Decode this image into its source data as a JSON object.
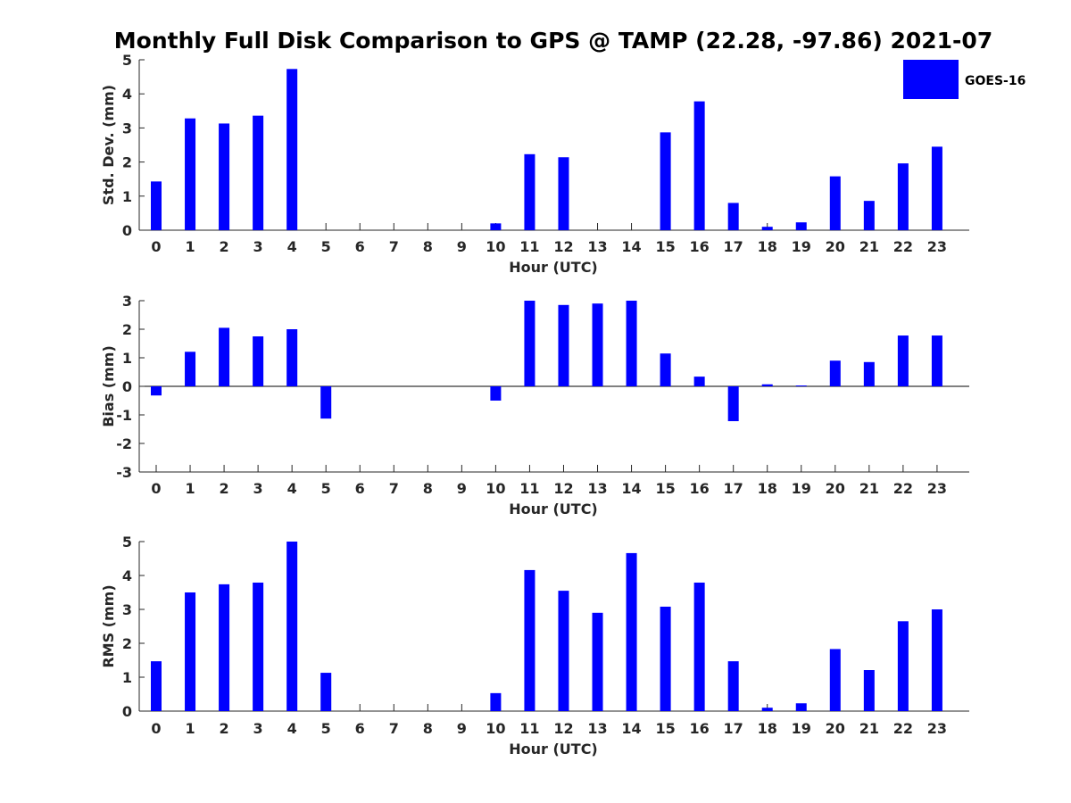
{
  "title": "Monthly Full Disk Comparison to GPS @ TAMP (22.28, -97.86) 2021-07",
  "colors": {
    "bar": "#0000ff",
    "axis": "#262626"
  },
  "legend": {
    "label": "GOES-16",
    "placement": "top-right"
  },
  "chart_data": [
    {
      "type": "bar",
      "name": "std",
      "xlabel": "Hour (UTC)",
      "ylabel": "Std. Dev. (mm)",
      "ylim": [
        0,
        5
      ],
      "yticks": [
        0,
        1,
        2,
        3,
        4,
        5
      ],
      "categories": [
        "0",
        "1",
        "2",
        "3",
        "4",
        "5",
        "6",
        "7",
        "8",
        "9",
        "10",
        "11",
        "12",
        "13",
        "14",
        "15",
        "16",
        "17",
        "18",
        "19",
        "20",
        "21",
        "22",
        "23"
      ],
      "values": [
        1.43,
        3.28,
        3.13,
        3.36,
        4.73,
        0,
        0,
        0,
        0,
        0,
        0.2,
        2.23,
        2.14,
        0,
        0,
        2.87,
        3.78,
        0.8,
        0.1,
        0.23,
        1.58,
        0.86,
        1.96,
        2.45
      ]
    },
    {
      "type": "bar",
      "name": "bias",
      "xlabel": "Hour (UTC)",
      "ylabel": "Bias (mm)",
      "ylim": [
        -3,
        3
      ],
      "yticks": [
        -3,
        -2,
        -1,
        0,
        1,
        2,
        3
      ],
      "categories": [
        "0",
        "1",
        "2",
        "3",
        "4",
        "5",
        "6",
        "7",
        "8",
        "9",
        "10",
        "11",
        "12",
        "13",
        "14",
        "15",
        "16",
        "17",
        "18",
        "19",
        "20",
        "21",
        "22",
        "23"
      ],
      "values": [
        -0.32,
        1.21,
        2.05,
        1.75,
        2.0,
        -1.13,
        0,
        0,
        0,
        0,
        -0.5,
        3.0,
        2.85,
        2.9,
        3.0,
        1.15,
        0.34,
        -1.22,
        0.07,
        0.03,
        0.9,
        0.85,
        1.78,
        1.78
      ]
    },
    {
      "type": "bar",
      "name": "rms",
      "xlabel": "Hour (UTC)",
      "ylabel": "RMS (mm)",
      "ylim": [
        0,
        5
      ],
      "yticks": [
        0,
        1,
        2,
        3,
        4,
        5
      ],
      "categories": [
        "0",
        "1",
        "2",
        "3",
        "4",
        "5",
        "6",
        "7",
        "8",
        "9",
        "10",
        "11",
        "12",
        "13",
        "14",
        "15",
        "16",
        "17",
        "18",
        "19",
        "20",
        "21",
        "22",
        "23"
      ],
      "values": [
        1.47,
        3.5,
        3.74,
        3.79,
        5.0,
        1.13,
        0,
        0,
        0,
        0,
        0.53,
        4.16,
        3.55,
        2.9,
        4.66,
        3.08,
        3.79,
        1.47,
        0.1,
        0.23,
        1.83,
        1.21,
        2.65,
        3.0
      ]
    }
  ]
}
